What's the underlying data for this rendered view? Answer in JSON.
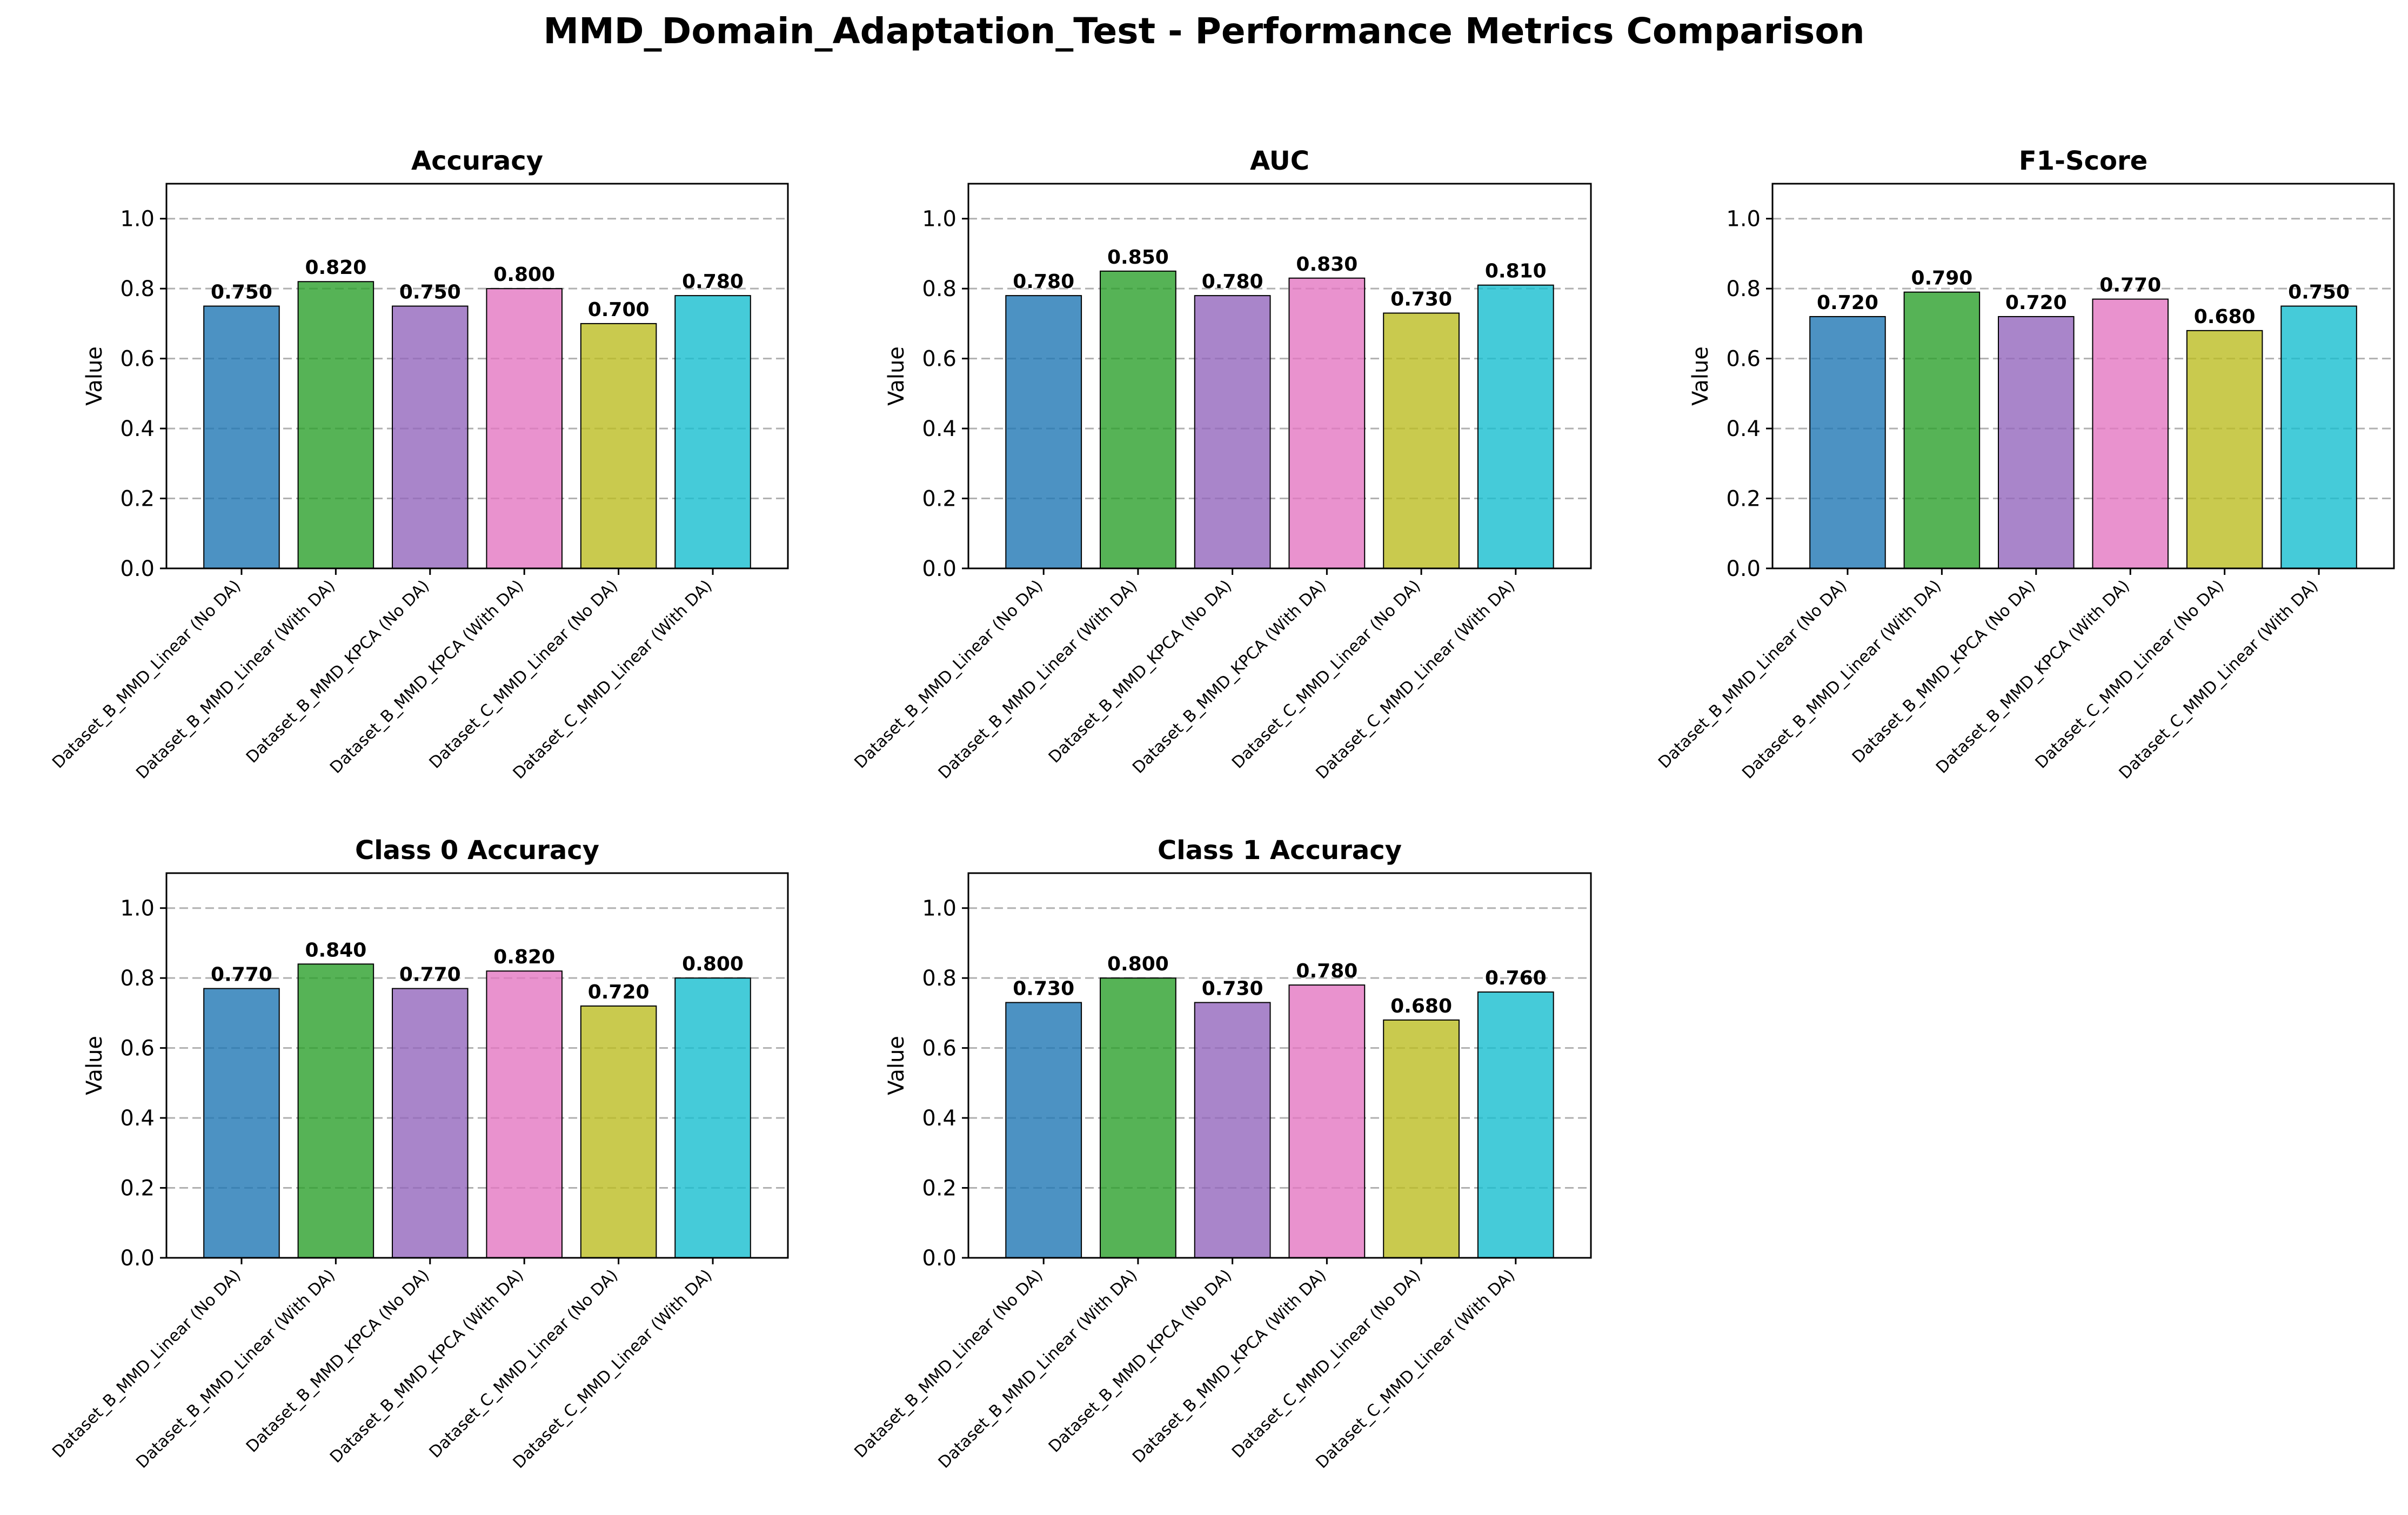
{
  "figure_title": "MMD_Domain_Adaptation_Test - Performance Metrics Comparison",
  "colors": [
    "#1f77b4",
    "#2ca02c",
    "#9467bd",
    "#e377c2",
    "#bcbd22",
    "#17becf"
  ],
  "chart_data": [
    {
      "type": "bar",
      "title": "Accuracy",
      "ylabel": "Value",
      "ylim": [
        0,
        1.1
      ],
      "yticks": [
        0.0,
        0.2,
        0.4,
        0.6,
        0.8,
        1.0
      ],
      "grid": "y-dashed",
      "categories": [
        "Dataset_B_MMD_Linear (No DA)",
        "Dataset_B_MMD_Linear (With DA)",
        "Dataset_B_MMD_KPCA (No DA)",
        "Dataset_B_MMD_KPCA (With DA)",
        "Dataset_C_MMD_Linear (No DA)",
        "Dataset_C_MMD_Linear (With DA)"
      ],
      "values": [
        0.75,
        0.82,
        0.75,
        0.8,
        0.7,
        0.78
      ]
    },
    {
      "type": "bar",
      "title": "AUC",
      "ylabel": "Value",
      "ylim": [
        0,
        1.1
      ],
      "yticks": [
        0.0,
        0.2,
        0.4,
        0.6,
        0.8,
        1.0
      ],
      "grid": "y-dashed",
      "categories": [
        "Dataset_B_MMD_Linear (No DA)",
        "Dataset_B_MMD_Linear (With DA)",
        "Dataset_B_MMD_KPCA (No DA)",
        "Dataset_B_MMD_KPCA (With DA)",
        "Dataset_C_MMD_Linear (No DA)",
        "Dataset_C_MMD_Linear (With DA)"
      ],
      "values": [
        0.78,
        0.85,
        0.78,
        0.83,
        0.73,
        0.81
      ]
    },
    {
      "type": "bar",
      "title": "F1-Score",
      "ylabel": "Value",
      "ylim": [
        0,
        1.1
      ],
      "yticks": [
        0.0,
        0.2,
        0.4,
        0.6,
        0.8,
        1.0
      ],
      "grid": "y-dashed",
      "categories": [
        "Dataset_B_MMD_Linear (No DA)",
        "Dataset_B_MMD_Linear (With DA)",
        "Dataset_B_MMD_KPCA (No DA)",
        "Dataset_B_MMD_KPCA (With DA)",
        "Dataset_C_MMD_Linear (No DA)",
        "Dataset_C_MMD_Linear (With DA)"
      ],
      "values": [
        0.72,
        0.79,
        0.72,
        0.77,
        0.68,
        0.75
      ]
    },
    {
      "type": "bar",
      "title": "Class 0 Accuracy",
      "ylabel": "Value",
      "ylim": [
        0,
        1.1
      ],
      "yticks": [
        0.0,
        0.2,
        0.4,
        0.6,
        0.8,
        1.0
      ],
      "grid": "y-dashed",
      "categories": [
        "Dataset_B_MMD_Linear (No DA)",
        "Dataset_B_MMD_Linear (With DA)",
        "Dataset_B_MMD_KPCA (No DA)",
        "Dataset_B_MMD_KPCA (With DA)",
        "Dataset_C_MMD_Linear (No DA)",
        "Dataset_C_MMD_Linear (With DA)"
      ],
      "values": [
        0.77,
        0.84,
        0.77,
        0.82,
        0.72,
        0.8
      ]
    },
    {
      "type": "bar",
      "title": "Class 1 Accuracy",
      "ylabel": "Value",
      "ylim": [
        0,
        1.1
      ],
      "yticks": [
        0.0,
        0.2,
        0.4,
        0.6,
        0.8,
        1.0
      ],
      "grid": "y-dashed",
      "categories": [
        "Dataset_B_MMD_Linear (No DA)",
        "Dataset_B_MMD_Linear (With DA)",
        "Dataset_B_MMD_KPCA (No DA)",
        "Dataset_B_MMD_KPCA (With DA)",
        "Dataset_C_MMD_Linear (No DA)",
        "Dataset_C_MMD_Linear (With DA)"
      ],
      "values": [
        0.73,
        0.8,
        0.73,
        0.78,
        0.68,
        0.76
      ]
    }
  ]
}
